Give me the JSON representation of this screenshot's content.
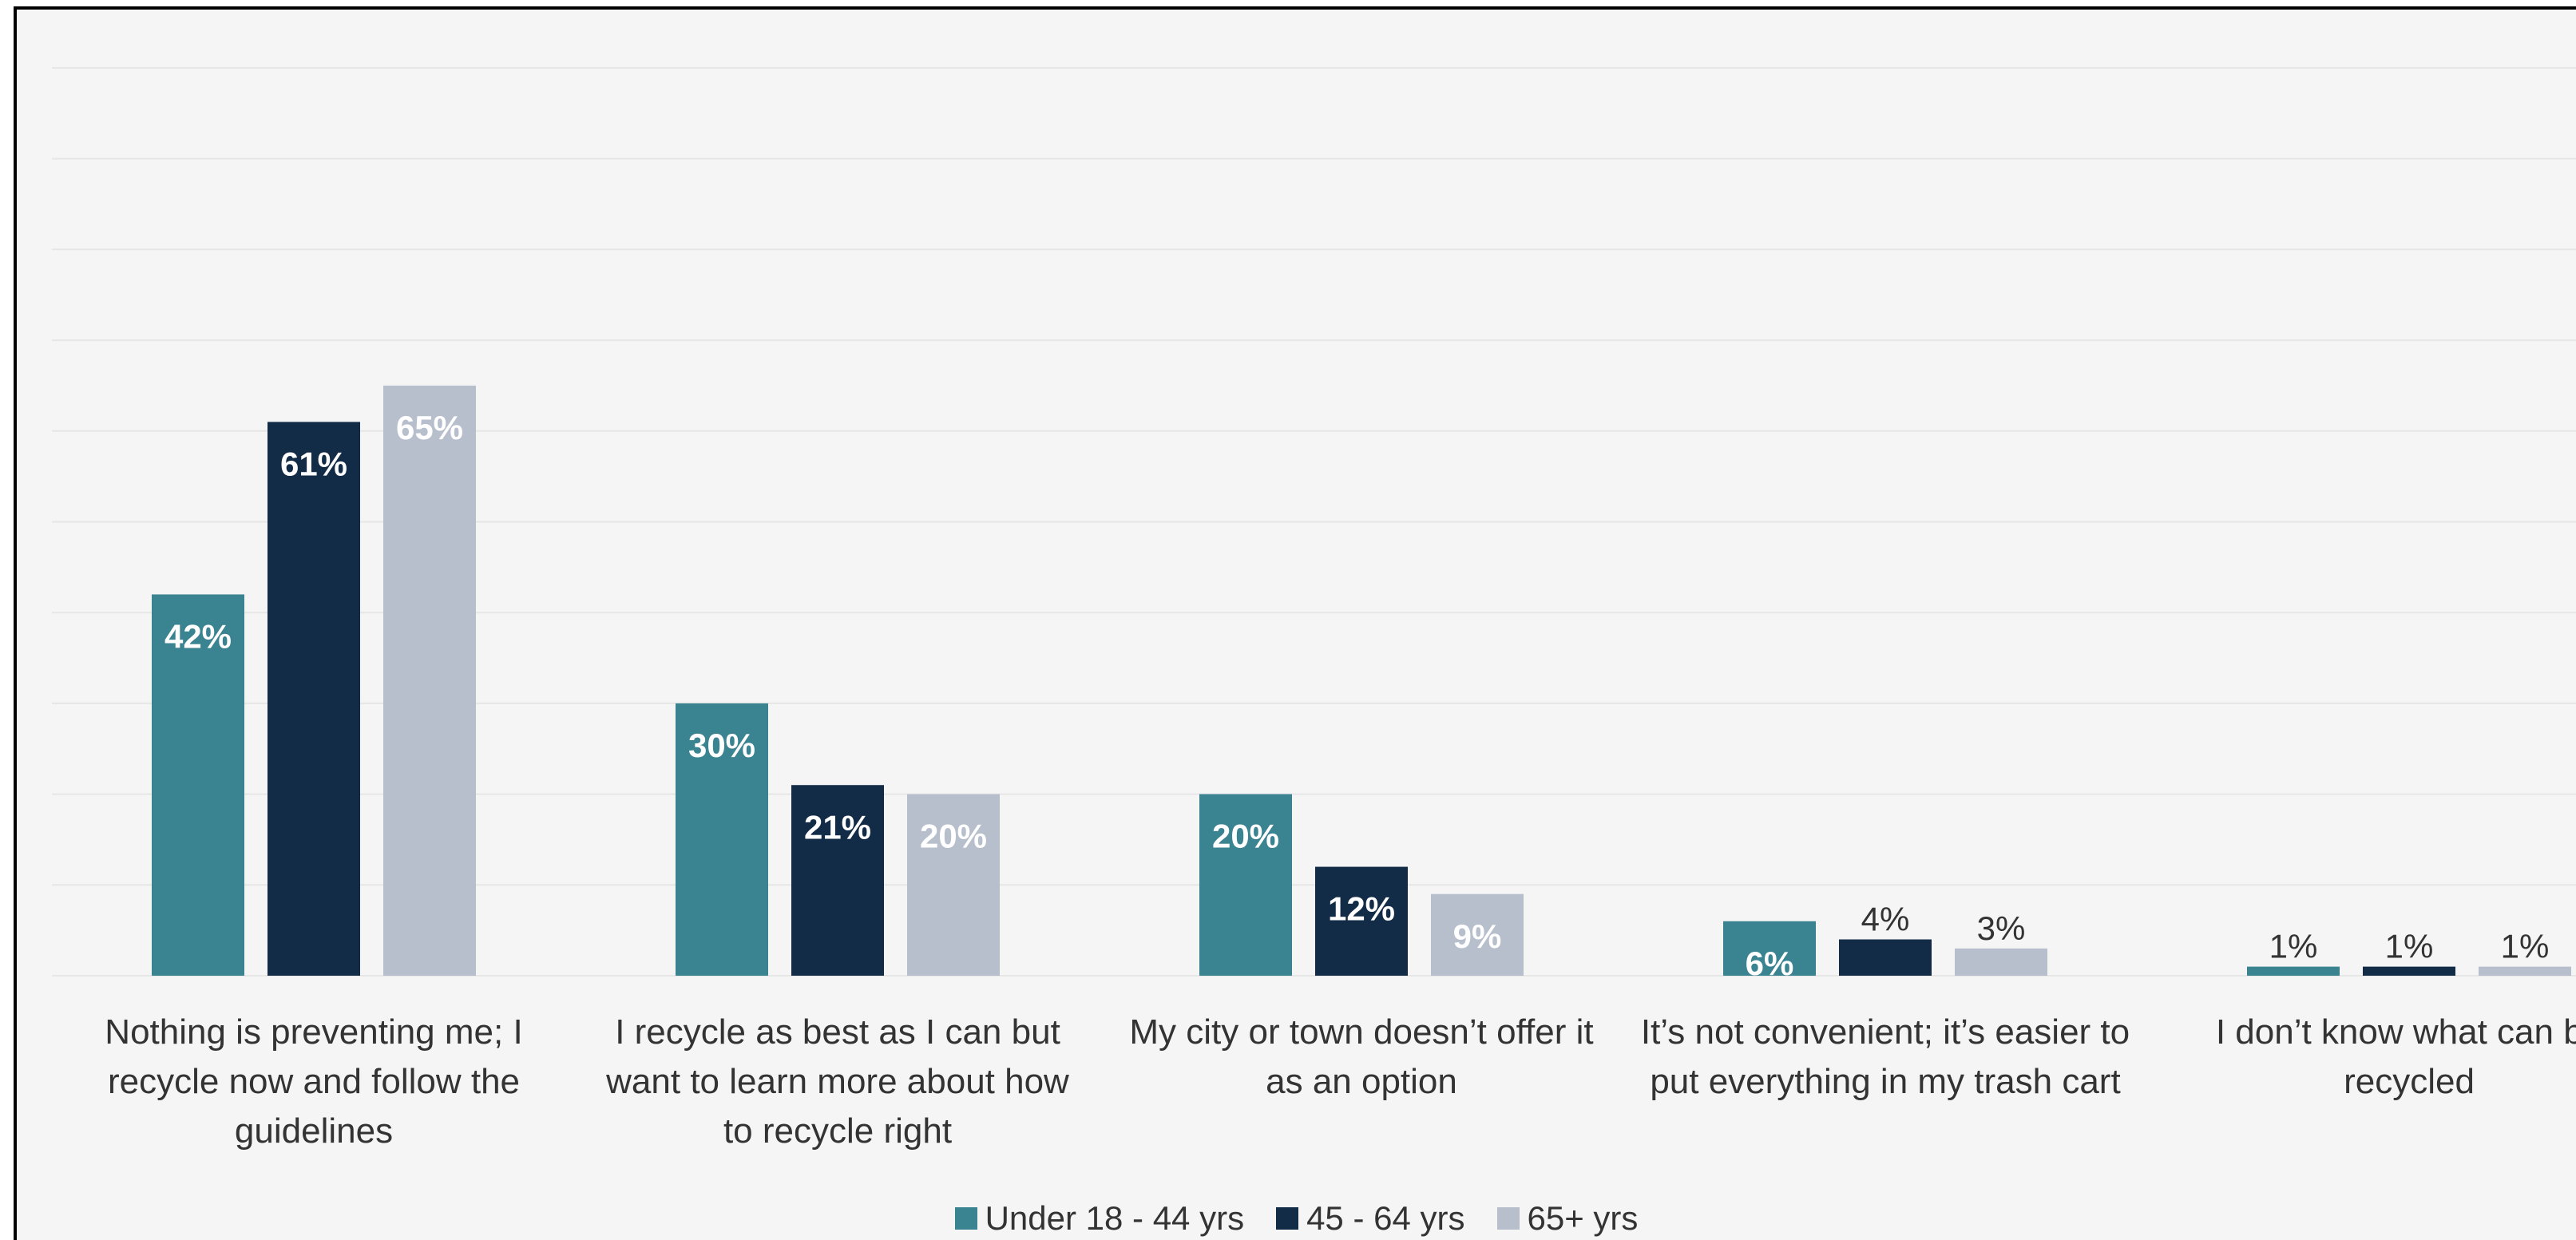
{
  "chart_data": {
    "type": "bar",
    "categories": [
      "Nothing is preventing me; I recycle now and follow the guidelines",
      "I recycle as best as I can but want to learn more about how to recycle right",
      "My city or town doesn’t offer it as an option",
      "It’s not convenient; it’s easier to put everything in my trash cart",
      "I don’t know what can be recycled"
    ],
    "series": [
      {
        "name": "Under 18 - 44 yrs",
        "color": "#3a8391",
        "values": [
          42,
          30,
          20,
          6,
          1
        ],
        "value_labels": [
          "42%",
          "30%",
          "20%",
          "6%",
          "1%"
        ]
      },
      {
        "name": "45 - 64 yrs",
        "color": "#122b47",
        "values": [
          61,
          21,
          12,
          4,
          1
        ],
        "value_labels": [
          "61%",
          "21%",
          "12%",
          "4%",
          "1%"
        ]
      },
      {
        "name": "65+ yrs",
        "color": "#b7bfcd",
        "values": [
          65,
          20,
          9,
          3,
          1
        ],
        "value_labels": [
          "65%",
          "20%",
          "9%",
          "3%",
          "1%"
        ]
      }
    ],
    "ylim": [
      0,
      100
    ],
    "yticks": [
      0,
      10,
      20,
      30,
      40,
      50,
      60,
      70,
      80,
      90,
      100
    ],
    "grid": true,
    "legend": "bottom"
  }
}
